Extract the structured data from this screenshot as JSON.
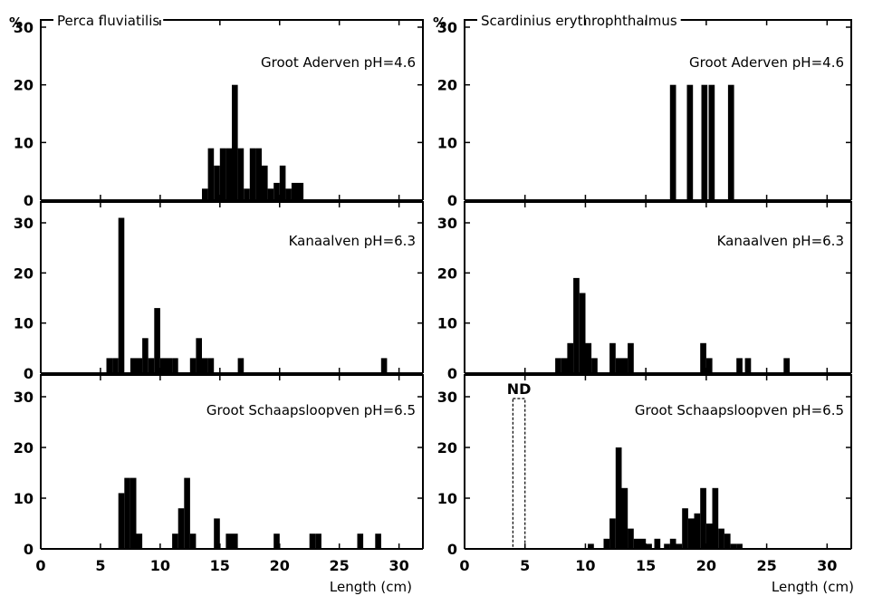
{
  "chart_data": [
    {
      "type": "bar",
      "title": "Perca fluviatilis",
      "unit_label": "%",
      "panel": "Groot Aderven pH=4.6",
      "xlim": [
        0,
        32
      ],
      "ylim": [
        0,
        30
      ],
      "xticks": [
        0,
        5,
        10,
        15,
        20,
        25,
        30
      ],
      "yticks": [
        0,
        10,
        20,
        30
      ],
      "bins": [
        [
          13.5,
          2
        ],
        [
          14,
          9
        ],
        [
          14.5,
          6
        ],
        [
          15,
          9
        ],
        [
          15.5,
          9
        ],
        [
          16,
          20
        ],
        [
          16.5,
          9
        ],
        [
          17,
          2
        ],
        [
          17.5,
          9
        ],
        [
          18,
          9
        ],
        [
          18.5,
          6
        ],
        [
          19,
          2
        ],
        [
          19.5,
          3
        ],
        [
          20,
          6
        ],
        [
          20.5,
          2
        ],
        [
          21,
          3
        ],
        [
          21.5,
          3
        ]
      ]
    },
    {
      "type": "bar",
      "title": "Scardinius erythrophthalmus",
      "unit_label": "%",
      "panel": "Groot Aderven pH=4.6",
      "xlim": [
        0,
        32
      ],
      "ylim": [
        0,
        30
      ],
      "xticks": [
        0,
        5,
        10,
        15,
        20,
        25,
        30
      ],
      "yticks": [
        0,
        10,
        20,
        30
      ],
      "bins": [
        [
          17,
          20
        ],
        [
          18.4,
          20
        ],
        [
          19.6,
          20
        ],
        [
          20.2,
          20
        ],
        [
          21.8,
          20
        ]
      ]
    },
    {
      "type": "bar",
      "panel": "Kanaalven pH=6.3",
      "xlim": [
        0,
        32
      ],
      "ylim": [
        0,
        30
      ],
      "xticks": [
        0,
        5,
        10,
        15,
        20,
        25,
        30
      ],
      "yticks": [
        0,
        10,
        20,
        30
      ],
      "bins": [
        [
          5.5,
          3
        ],
        [
          6,
          3
        ],
        [
          6.5,
          31
        ],
        [
          7.5,
          3
        ],
        [
          8,
          3
        ],
        [
          8.5,
          7
        ],
        [
          9,
          3
        ],
        [
          9.5,
          13
        ],
        [
          10,
          3
        ],
        [
          10.5,
          3
        ],
        [
          11,
          3
        ],
        [
          12.5,
          3
        ],
        [
          13,
          7
        ],
        [
          13.5,
          3
        ],
        [
          14,
          3
        ],
        [
          16.5,
          3
        ],
        [
          28.5,
          3
        ]
      ]
    },
    {
      "type": "bar",
      "panel": "Kanaalven pH=6.3",
      "xlim": [
        0,
        32
      ],
      "ylim": [
        0,
        30
      ],
      "xticks": [
        0,
        5,
        10,
        15,
        20,
        25,
        30
      ],
      "yticks": [
        0,
        10,
        20,
        30
      ],
      "bins": [
        [
          7.5,
          3
        ],
        [
          8,
          3
        ],
        [
          8.5,
          6
        ],
        [
          9,
          19
        ],
        [
          9.5,
          16
        ],
        [
          10,
          6
        ],
        [
          10.5,
          3
        ],
        [
          12,
          6
        ],
        [
          12.5,
          3
        ],
        [
          13,
          3
        ],
        [
          13.5,
          6
        ],
        [
          19.5,
          6
        ],
        [
          20,
          3
        ],
        [
          22.5,
          3
        ],
        [
          23.2,
          3
        ],
        [
          26.4,
          3
        ]
      ]
    },
    {
      "type": "bar",
      "panel": "Groot Schaapsloopven pH=6.5",
      "xlim": [
        0,
        32
      ],
      "ylim": [
        0,
        30
      ],
      "xticks": [
        0,
        5,
        10,
        15,
        20,
        25,
        30
      ],
      "yticks": [
        0,
        10,
        20,
        30
      ],
      "bins": [
        [
          6.5,
          11
        ],
        [
          7,
          14
        ],
        [
          7.5,
          14
        ],
        [
          8,
          3
        ],
        [
          11,
          3
        ],
        [
          11.5,
          8
        ],
        [
          12,
          14
        ],
        [
          12.5,
          3
        ],
        [
          14.5,
          6
        ],
        [
          15.5,
          3
        ],
        [
          16,
          3
        ],
        [
          19.5,
          3
        ],
        [
          22.5,
          3
        ],
        [
          23,
          3
        ],
        [
          26.5,
          3
        ],
        [
          28,
          3
        ]
      ]
    },
    {
      "type": "bar",
      "panel": "Groot Schaapsloopven pH=6.5",
      "xlim": [
        0,
        32
      ],
      "ylim": [
        0,
        30
      ],
      "xticks": [
        0,
        5,
        10,
        15,
        20,
        25,
        30
      ],
      "yticks": [
        0,
        10,
        20,
        30
      ],
      "xlabel": "Length (cm)",
      "annotation": "ND",
      "bins": [
        [
          10.2,
          1
        ],
        [
          11.5,
          2
        ],
        [
          12,
          6
        ],
        [
          12.5,
          20
        ],
        [
          13,
          12
        ],
        [
          13.5,
          4
        ],
        [
          14,
          2
        ],
        [
          14.5,
          2
        ],
        [
          15,
          1
        ],
        [
          15.7,
          2
        ],
        [
          16.5,
          1
        ],
        [
          17,
          2
        ],
        [
          17.5,
          1
        ],
        [
          18,
          8
        ],
        [
          18.5,
          6
        ],
        [
          19,
          7
        ],
        [
          19.5,
          12
        ],
        [
          20,
          5
        ],
        [
          20.5,
          12
        ],
        [
          21,
          4
        ],
        [
          21.5,
          3
        ],
        [
          22,
          1
        ],
        [
          22.5,
          1
        ]
      ]
    }
  ]
}
